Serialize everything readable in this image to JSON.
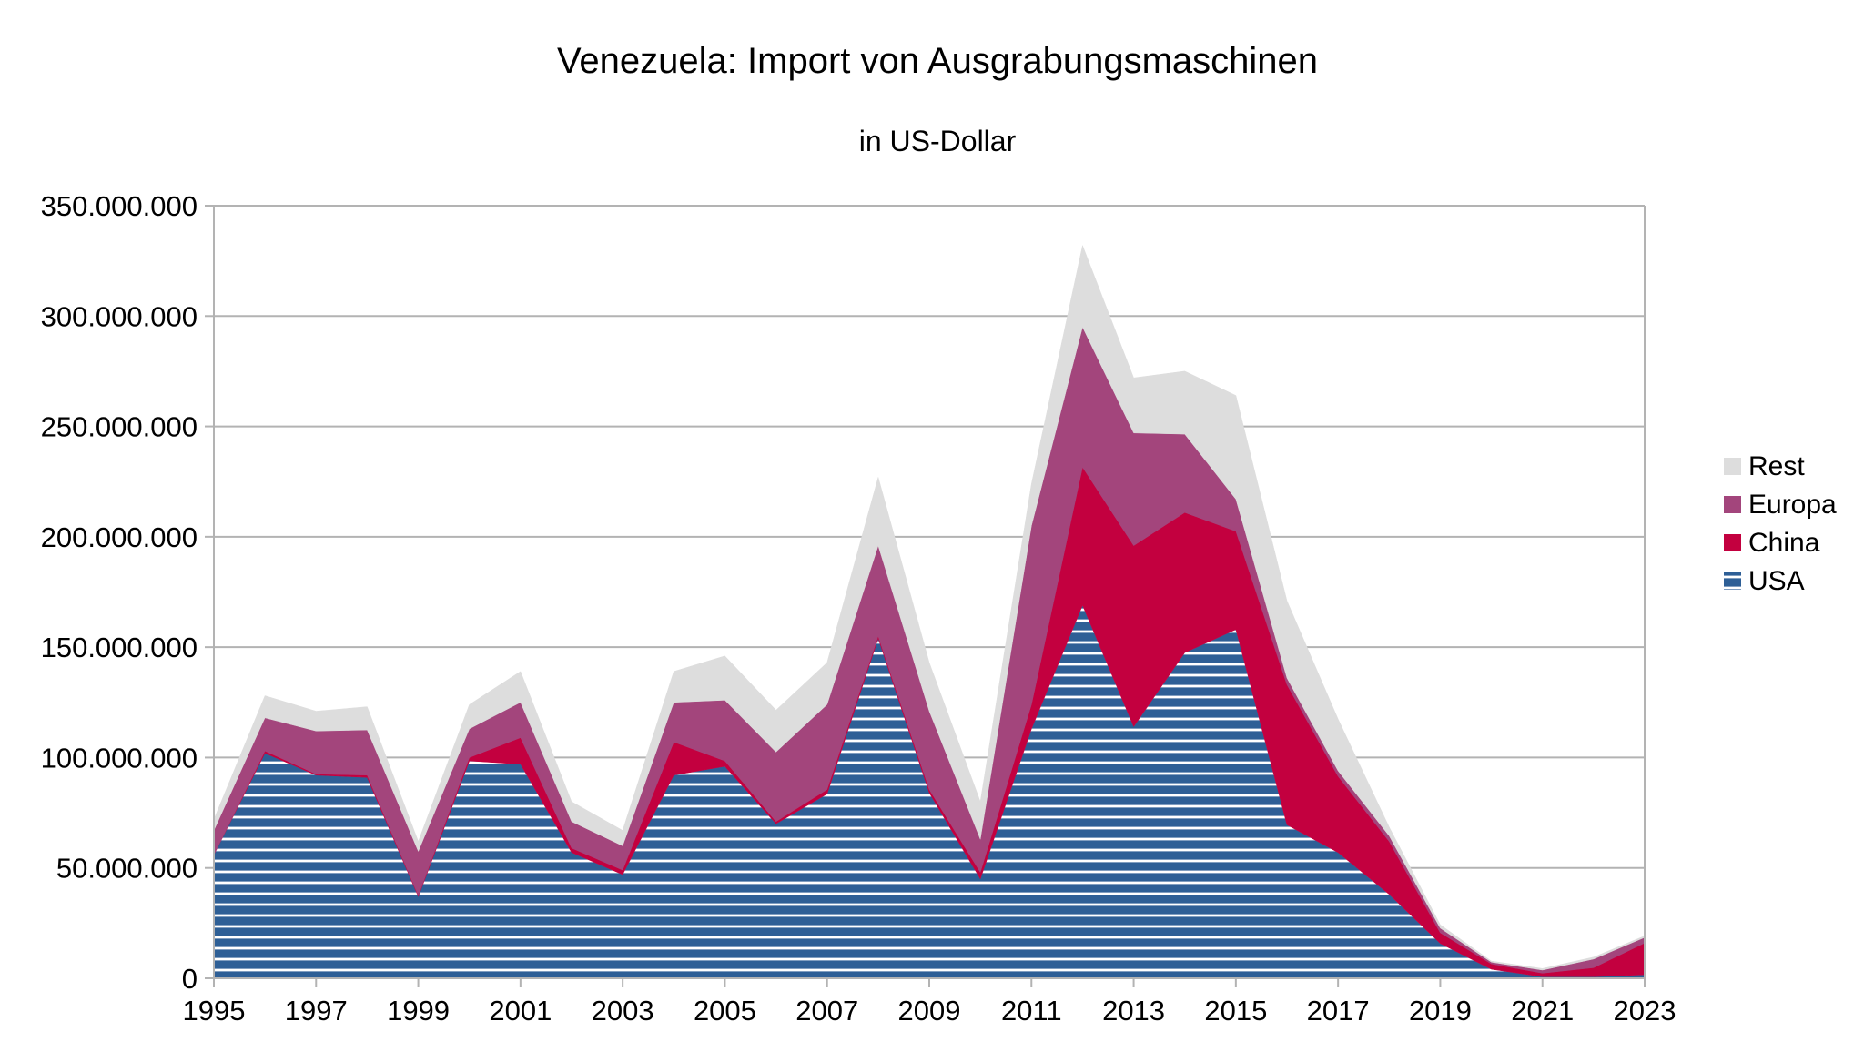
{
  "chart_data": {
    "type": "area",
    "stacked": true,
    "title": "Venezuela: Import von Ausgrabungsmaschinen",
    "subtitle": "in US-Dollar",
    "xlabel": "",
    "ylabel": "",
    "ylim": [
      0,
      350000000
    ],
    "ytick_step": 50000000,
    "ytick_labels": [
      "0",
      "50.000.000",
      "100.000.000",
      "150.000.000",
      "200.000.000",
      "250.000.000",
      "300.000.000",
      "350.000.000"
    ],
    "xtick_labels": [
      "1995",
      "1997",
      "1999",
      "2001",
      "2003",
      "2005",
      "2007",
      "2009",
      "2011",
      "2013",
      "2015",
      "2017",
      "2019",
      "2021",
      "2023"
    ],
    "grid": true,
    "legend_position": "right",
    "x": [
      1995,
      1996,
      1997,
      1998,
      1999,
      2000,
      2001,
      2002,
      2003,
      2004,
      2005,
      2006,
      2007,
      2008,
      2009,
      2010,
      2011,
      2012,
      2013,
      2014,
      2015,
      2016,
      2017,
      2018,
      2019,
      2020,
      2021,
      2022,
      2023
    ],
    "series": [
      {
        "name": "USA",
        "color": "#2e5f96",
        "pattern": "horizontal-stripes",
        "values": [
          56000000,
          102000000,
          92000000,
          91000000,
          37000000,
          98500000,
          97000000,
          57000000,
          47000000,
          92000000,
          96000000,
          70000000,
          83500000,
          154000000,
          84000000,
          45000000,
          113000000,
          169000000,
          114000000,
          147500000,
          158000000,
          69500000,
          57000000,
          38000000,
          15800000,
          4100000,
          700000,
          700000,
          1600000
        ]
      },
      {
        "name": "China",
        "color": "#c3003f",
        "values": [
          0,
          1000000,
          500000,
          1000000,
          500000,
          1500000,
          12000000,
          2000000,
          2000000,
          15000000,
          2500000,
          1000000,
          2000000,
          1000000,
          1500000,
          3000000,
          11000000,
          62500000,
          82000000,
          63500000,
          44500000,
          63500000,
          34500000,
          24000000,
          4800000,
          2400000,
          1600000,
          4100000,
          14400000
        ]
      },
      {
        "name": "Europa",
        "color": "#a3457c",
        "values": [
          11000000,
          15000000,
          19500000,
          20500000,
          20000000,
          13000000,
          16000000,
          12000000,
          11000000,
          18000000,
          27500000,
          31500000,
          38500000,
          41000000,
          35500000,
          15000000,
          81000000,
          63500000,
          51000000,
          35500000,
          14500000,
          3000000,
          2500000,
          2500000,
          2100000,
          800000,
          1400000,
          3900000,
          2500000
        ]
      },
      {
        "name": "Rest",
        "color": "#dddddd",
        "values": [
          5000000,
          10000000,
          9000000,
          10500000,
          4500000,
          11000000,
          14000000,
          9000000,
          7000000,
          14000000,
          20000000,
          19000000,
          19000000,
          31000000,
          22000000,
          17000000,
          19000000,
          37000000,
          25000000,
          28500000,
          47000000,
          35000000,
          23500000,
          4000000,
          1600000,
          500000,
          700000,
          900000,
          700000
        ]
      }
    ]
  }
}
